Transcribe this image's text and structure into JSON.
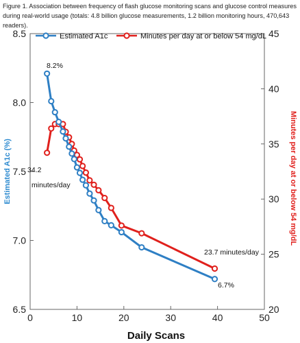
{
  "caption": {
    "line1": "Figure 1.  Association between frequency of flash glucose monitoring scans and glucose control measures",
    "line2": "during real-world usage (totals: 4.8 billion glucose measurements, 1.2 billion monitoring hours, 470,643 readers)."
  },
  "chart_data": {
    "type": "line",
    "xlabel": "Daily Scans",
    "ylabel_left": "Estimated A1c (%)",
    "ylabel_right": "Minutes per day at or below 54 mg/dL",
    "xlim": [
      0,
      50
    ],
    "ylim_left": [
      6.5,
      8.5
    ],
    "ylim_right": [
      20,
      45
    ],
    "x_ticks": [
      "0",
      "10",
      "20",
      "30",
      "40",
      "50"
    ],
    "y_left_ticks": [
      "6.5",
      "7.0",
      "7.5",
      "8.0",
      "8.5"
    ],
    "y_right_ticks": [
      "20",
      "25",
      "30",
      "35",
      "40",
      "45"
    ],
    "grid": false,
    "legend_position": "top",
    "series": [
      {
        "name": "Estimated A1c",
        "axis": "left",
        "color": "#2E7FC4",
        "x": [
          3.6,
          4.5,
          5.3,
          6.1,
          7.0,
          7.6,
          8.3,
          8.9,
          9.4,
          10.0,
          10.6,
          11.2,
          11.9,
          12.7,
          13.6,
          14.6,
          15.9,
          17.3,
          19.5,
          23.8,
          39.4
        ],
        "y": [
          8.21,
          8.01,
          7.93,
          7.86,
          7.79,
          7.74,
          7.68,
          7.63,
          7.59,
          7.53,
          7.49,
          7.44,
          7.4,
          7.34,
          7.29,
          7.22,
          7.14,
          7.11,
          7.06,
          6.95,
          6.72
        ]
      },
      {
        "name": "Minutes per day at or below 54 mg/dL",
        "axis": "right",
        "color": "#E0201C",
        "x": [
          3.6,
          4.5,
          5.3,
          6.1,
          7.0,
          7.6,
          8.3,
          8.9,
          9.4,
          10.0,
          10.6,
          11.2,
          11.9,
          12.7,
          13.6,
          14.6,
          15.9,
          17.3,
          19.5,
          23.8,
          39.4
        ],
        "y": [
          34.2,
          36.4,
          36.8,
          36.8,
          36.8,
          36.1,
          35.6,
          35.0,
          34.4,
          34.0,
          33.6,
          33.0,
          32.4,
          31.7,
          31.3,
          30.8,
          30.1,
          29.2,
          27.6,
          26.9,
          23.7
        ]
      }
    ],
    "annotations": {
      "a1c_start": "8.2%",
      "a1c_end": "6.7%",
      "minutes_start_1": "34.2",
      "minutes_start_2": "minutes/day",
      "minutes_end": "23.7 minutes/day"
    }
  }
}
